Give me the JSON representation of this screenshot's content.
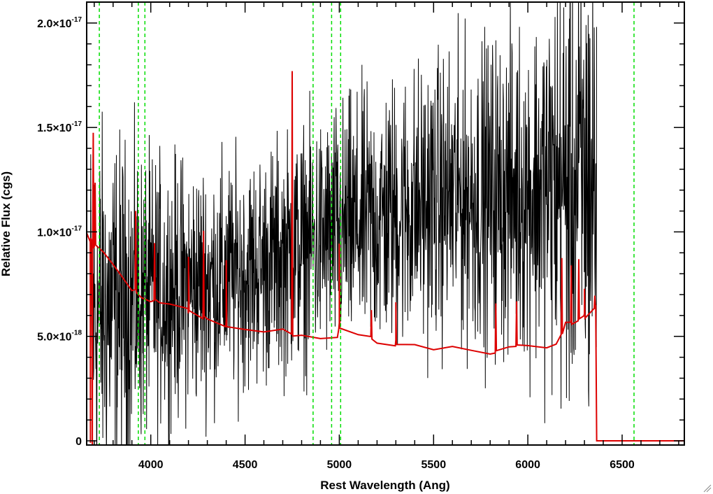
{
  "chart_data": {
    "type": "line",
    "title": "",
    "xlabel": "Rest Wavelength (Ang)",
    "ylabel": "Relative Flux (cgs)",
    "xlim": [
      3660,
      6830
    ],
    "ylim": [
      -2e-19,
      2.1e-17
    ],
    "x_ticks": [
      {
        "value": 4000,
        "label": "4000"
      },
      {
        "value": 4500,
        "label": "4500"
      },
      {
        "value": 5000,
        "label": "5000"
      },
      {
        "value": 5500,
        "label": "5500"
      },
      {
        "value": 6000,
        "label": "6000"
      },
      {
        "value": 6500,
        "label": "6500"
      }
    ],
    "y_ticks": [
      {
        "value": 0,
        "mantissa": "0",
        "exponent": ""
      },
      {
        "value": 5e-18,
        "mantissa": "5.0×10",
        "exponent": "-18"
      },
      {
        "value": 1e-17,
        "mantissa": "1.0×10",
        "exponent": "-17"
      },
      {
        "value": 1.5e-17,
        "mantissa": "1.5×10",
        "exponent": "-17"
      },
      {
        "value": 2e-17,
        "mantissa": "2.0×10",
        "exponent": "-17"
      }
    ],
    "x_minor_step": 100,
    "y_minor_step": 1e-18,
    "grid": false,
    "vlines": {
      "color": "#00dd00",
      "style": "dashed",
      "x": [
        3727,
        3934,
        3969,
        4861,
        4959,
        5007,
        6563
      ]
    },
    "series": [
      {
        "color": "#000000",
        "style": "noisy spectrum",
        "continuum_knots": [
          [
            3680,
            6e-18
          ],
          [
            4000,
            7e-18
          ],
          [
            4500,
            8e-18
          ],
          [
            5000,
            1e-17
          ],
          [
            5500,
            1.15e-17
          ],
          [
            6000,
            1.2e-17
          ],
          [
            6360,
            1.25e-17
          ]
        ],
        "noise_knots": [
          [
            3680,
            6.5e-18
          ],
          [
            4000,
            4.5e-18
          ],
          [
            4500,
            3.8e-18
          ],
          [
            5000,
            4.2e-18
          ],
          [
            5500,
            4.8e-18
          ],
          [
            6000,
            5.5e-18
          ],
          [
            6360,
            9e-18
          ]
        ],
        "x_range": [
          3680,
          6365
        ]
      },
      {
        "color": "#dd0000",
        "style": "error spectrum",
        "points": [
          [
            3660,
            9.8e-18
          ],
          [
            3700,
            9.3e-18
          ],
          [
            3750,
            8.9e-18
          ],
          [
            3800,
            8.3e-18
          ],
          [
            3850,
            7.8e-18
          ],
          [
            3900,
            7.3e-18
          ],
          [
            3950,
            7e-18
          ],
          [
            4000,
            6.7e-18
          ],
          [
            4050,
            6.5e-18
          ],
          [
            4100,
            6.4e-18
          ],
          [
            4200,
            6.2e-18
          ],
          [
            4300,
            5.9e-18
          ],
          [
            4400,
            5.6e-18
          ],
          [
            4500,
            5.4e-18
          ],
          [
            4600,
            5.3e-18
          ],
          [
            4700,
            5.2e-18
          ],
          [
            4800,
            5.1e-18
          ],
          [
            4900,
            5e-18
          ],
          [
            4990,
            5.1e-18
          ],
          [
            5000,
            5.5e-18
          ],
          [
            5100,
            5.1e-18
          ],
          [
            5200,
            4.8e-18
          ],
          [
            5300,
            4.7e-18
          ],
          [
            5400,
            4.6e-18
          ],
          [
            5500,
            4.5e-18
          ],
          [
            5600,
            4.4e-18
          ],
          [
            5700,
            4.3e-18
          ],
          [
            5800,
            4.3e-18
          ],
          [
            5900,
            4.4e-18
          ],
          [
            6000,
            4.5e-18
          ],
          [
            6100,
            4.6e-18
          ],
          [
            6150,
            4.7e-18
          ],
          [
            6200,
            5.6e-18
          ],
          [
            6300,
            6e-18
          ],
          [
            6360,
            6.5e-18
          ]
        ],
        "spikes": [
          [
            3695,
            1.46e-17
          ],
          [
            3705,
            1.25e-17
          ],
          [
            3920,
            1.1e-17
          ],
          [
            4020,
            9.6e-18
          ],
          [
            4200,
            8.9e-18
          ],
          [
            4280,
            1e-17
          ],
          [
            4400,
            8.5e-18
          ],
          [
            4750,
            1.76e-17
          ],
          [
            5000,
            9.3e-18
          ],
          [
            5170,
            6.3e-18
          ],
          [
            5300,
            6.5e-18
          ],
          [
            5830,
            6.5e-18
          ],
          [
            5940,
            6.8e-18
          ],
          [
            6180,
            8.6e-18
          ],
          [
            6230,
            8.3e-18
          ],
          [
            6270,
            8.6e-18
          ],
          [
            6300,
            7.2e-18
          ],
          [
            6355,
            6.8e-18
          ]
        ],
        "drops": [
          [
            3680,
            -2e-19
          ],
          [
            3690,
            -2e-19
          ]
        ],
        "flat_after": [
          6365,
          0
        ]
      }
    ]
  }
}
